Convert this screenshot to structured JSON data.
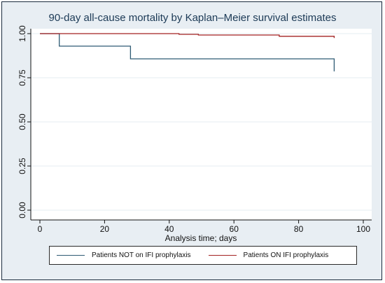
{
  "chart_data": {
    "type": "line",
    "step": true,
    "title": "90-day all-cause mortality by Kaplan–Meier survival estimates",
    "xlabel": "Analysis time; days",
    "ylabel": "",
    "xlim": [
      0,
      100
    ],
    "ylim": [
      0,
      1.0
    ],
    "x_ticks": [
      "0",
      "20",
      "40",
      "60",
      "80",
      "100"
    ],
    "y_ticks": [
      "0.00",
      "0.25",
      "0.50",
      "0.75",
      "1.00"
    ],
    "grid": true,
    "legend_position": "bottom",
    "series": [
      {
        "name": "Patients NOT on IFI prophylaxis",
        "color": "#2e5a73",
        "points": [
          [
            0,
            1.0
          ],
          [
            6,
            1.0
          ],
          [
            6,
            0.929
          ],
          [
            28,
            0.929
          ],
          [
            28,
            0.857
          ],
          [
            91,
            0.857
          ],
          [
            91,
            0.786
          ]
        ]
      },
      {
        "name": "Patients ON IFI prophylaxis",
        "color": "#a32222",
        "points": [
          [
            0,
            1.0
          ],
          [
            43,
            1.0
          ],
          [
            43,
            0.996
          ],
          [
            49,
            0.996
          ],
          [
            49,
            0.992
          ],
          [
            74,
            0.992
          ],
          [
            74,
            0.985
          ],
          [
            91,
            0.985
          ],
          [
            91,
            0.975
          ]
        ]
      }
    ]
  },
  "colors": {
    "frame_background": "#e8eef3",
    "plot_background": "#ffffff",
    "grid": "#e4ecf1",
    "axis": "#111111"
  }
}
